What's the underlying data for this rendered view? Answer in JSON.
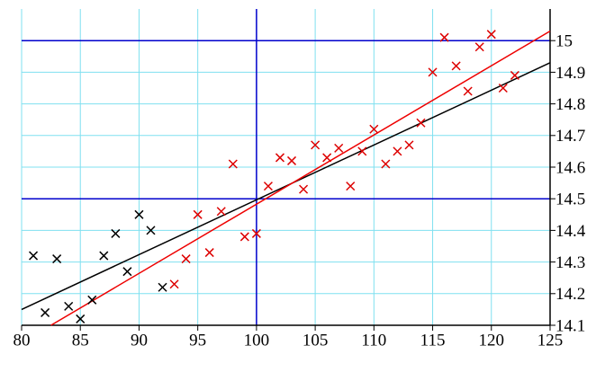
{
  "chart_data": {
    "type": "scatter",
    "xlim": [
      80,
      125
    ],
    "ylim": [
      14.1,
      15.1
    ],
    "xticks": [
      80,
      85,
      90,
      95,
      100,
      105,
      110,
      115,
      120,
      125
    ],
    "yticks": [
      14.1,
      14.2,
      14.3,
      14.4,
      14.5,
      14.6,
      14.7,
      14.8,
      14.9,
      15
    ],
    "grid": true,
    "grid_color": "#7fe0f0",
    "major_color": "#0000cc",
    "major_x": [
      100
    ],
    "major_y": [
      14.5,
      15
    ],
    "series": [
      {
        "color": "#000000",
        "x": [
          81,
          82,
          83,
          84,
          85,
          86,
          87,
          88,
          89,
          90,
          91,
          92
        ],
        "values": [
          14.32,
          14.14,
          14.31,
          14.16,
          14.12,
          14.18,
          14.32,
          14.39,
          14.27,
          14.45,
          14.4,
          14.22
        ]
      },
      {
        "color": "#dd0000",
        "x": [
          93,
          94,
          95,
          96,
          97,
          98,
          99,
          100,
          101,
          102,
          103,
          104,
          105,
          106,
          107,
          108,
          109,
          110,
          111,
          112,
          113,
          114,
          115,
          116,
          117,
          118,
          119,
          120,
          121,
          122
        ],
        "values": [
          14.23,
          14.31,
          14.45,
          14.33,
          14.46,
          14.61,
          14.38,
          14.39,
          14.54,
          14.63,
          14.62,
          14.53,
          14.67,
          14.63,
          14.66,
          14.54,
          14.65,
          14.72,
          14.61,
          14.65,
          14.67,
          14.74,
          14.9,
          15.01,
          14.92,
          14.84,
          14.98,
          15.02,
          14.85,
          14.89
        ]
      }
    ],
    "fits": [
      {
        "color": "#000000",
        "x": [
          80,
          125
        ],
        "values": [
          14.15,
          14.93
        ]
      },
      {
        "color": "#ee0000",
        "x": [
          82.5,
          125
        ],
        "values": [
          14.1,
          15.03
        ]
      }
    ]
  }
}
